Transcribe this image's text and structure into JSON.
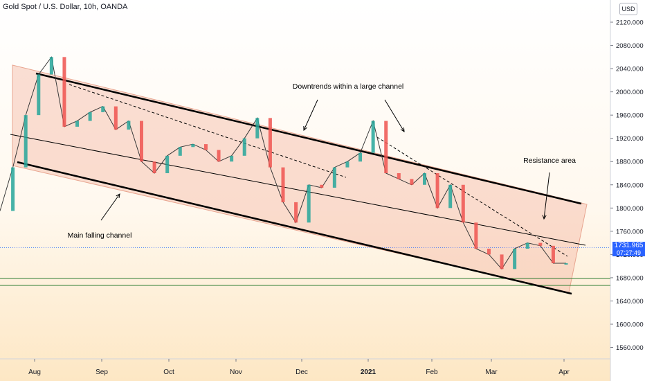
{
  "header": {
    "title": "Gold Spot / U.S. Dollar, 10h, OANDA",
    "currency_button": "USD"
  },
  "chart_data": {
    "type": "line",
    "title": "Gold Spot / U.S. Dollar, 10h, OANDA",
    "y_axis": {
      "ylim": [
        1525,
        2150
      ],
      "ticks": [
        2120,
        2080,
        2040,
        2000,
        1960,
        1920,
        1880,
        1840,
        1800,
        1760,
        1720,
        1680,
        1640,
        1600,
        1560
      ],
      "tick_labels": [
        "2120.000",
        "2080.000",
        "2040.000",
        "2000.000",
        "1960.000",
        "1920.000",
        "1880.000",
        "1840.000",
        "1800.000",
        "1760.000",
        "1720.000",
        "1680.000",
        "1640.000",
        "1600.000",
        "1560.000"
      ]
    },
    "x_axis": {
      "labels": [
        "Aug",
        "Sep",
        "Oct",
        "Nov",
        "Dec",
        "2021",
        "Feb",
        "Mar",
        "Apr"
      ]
    },
    "series": [
      {
        "x": [
          "Jul 20",
          "Jul 28",
          "Aug 3",
          "Aug 6",
          "Aug 10",
          "Aug 14",
          "Aug 20",
          "Aug 26",
          "Sep 1",
          "Sep 10",
          "Sep 17",
          "Sep 21",
          "Sep 24",
          "Oct 1",
          "Oct 9",
          "Oct 14",
          "Oct 21",
          "Oct 27",
          "Nov 2",
          "Nov 6",
          "Nov 9",
          "Nov 16",
          "Nov 24",
          "Nov 30",
          "Dec 4",
          "Dec 10",
          "Dec 16",
          "Dec 22",
          "Dec 30",
          "Jan 6",
          "Jan 8",
          "Jan 15",
          "Jan 22",
          "Jan 28",
          "Feb 4",
          "Feb 10",
          "Feb 18",
          "Feb 26",
          "Mar 3",
          "Mar 8",
          "Mar 12",
          "Mar 18",
          "Mar 24",
          "Mar 29",
          "Apr 1"
        ],
        "values": [
          1795,
          1870,
          1960,
          2030,
          2060,
          1940,
          1950,
          1965,
          1975,
          1935,
          1950,
          1880,
          1860,
          1890,
          1905,
          1910,
          1900,
          1880,
          1890,
          1920,
          1955,
          1870,
          1810,
          1775,
          1840,
          1835,
          1870,
          1880,
          1895,
          1950,
          1860,
          1850,
          1840,
          1860,
          1800,
          1840,
          1775,
          1730,
          1720,
          1695,
          1730,
          1740,
          1735,
          1705,
          1705
        ]
      }
    ],
    "current_price": "1731.965",
    "countdown": "07:27:49",
    "annotations": [
      "Downtrends within a large channel",
      "Resistance area",
      "Main falling channel"
    ]
  }
}
